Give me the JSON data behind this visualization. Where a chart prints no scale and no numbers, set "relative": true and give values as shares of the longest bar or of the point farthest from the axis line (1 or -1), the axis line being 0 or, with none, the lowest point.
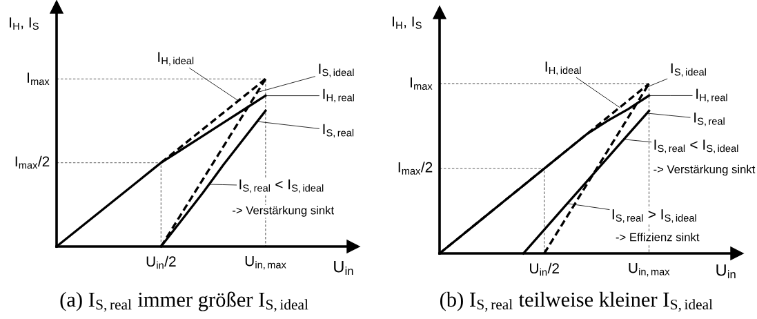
{
  "chart_data": [
    {
      "type": "line",
      "relative": true,
      "legend": "right",
      "title": "(a) I$_{S,real}$ immer größer I$_{S,ideal}$",
      "xlabel": "U$_{in}$",
      "ylabel": "I$_{H}$, I$_{S}$",
      "categories": [
        null,
        null,
        null,
        null,
        null,
        "U$_{in}$/2",
        null,
        null,
        null,
        null,
        "U$_{in,max}$"
      ],
      "ref_lines": [
        {
          "axis": "y",
          "value": 0.5,
          "label": "I$_{max}$/2",
          "color": "#808080",
          "line_style": "dotted"
        },
        {
          "axis": "y",
          "value": 1,
          "label": "I$_{max}$",
          "color": "#808080",
          "line_style": "dotted"
        }
      ],
      "series": [
        {
          "name": "I$_{H,ideal}$",
          "color": "#000000",
          "line_style": "dashed",
          "values": [
            null,
            null,
            null,
            null,
            null,
            0.5,
            0.6,
            0.7,
            0.8,
            0.9,
            1
          ]
        },
        {
          "name": "I$_{S,ideal}$",
          "color": "#000000",
          "line_style": "dashed",
          "values": [
            null,
            null,
            null,
            null,
            null,
            0,
            0.2,
            0.4,
            0.6,
            0.8,
            1
          ]
        },
        {
          "name": "I$_{H,real}$",
          "color": "#000000",
          "line_style": "solid",
          "values": [
            0,
            0.1,
            0.2,
            0.3,
            0.4,
            0.5,
            0.58,
            0.66,
            0.74,
            0.82,
            0.9
          ]
        },
        {
          "name": "I$_{S,real}$",
          "color": "#000000",
          "line_style": "solid",
          "values": [
            null,
            null,
            null,
            null,
            null,
            0,
            0.16,
            0.32,
            0.49,
            0.65,
            0.81
          ]
        }
      ],
      "annotations": [
        "I$_{S,real}$ < I$_{S,ideal}$",
        "-> Verstärkung sinkt"
      ]
    },
    {
      "type": "line",
      "relative": true,
      "legend": "right",
      "title": "(b) I$_{S,real}$ teilweise kleiner I$_{S,ideal}$",
      "xlabel": "U$_{in}$",
      "ylabel": "I$_{H}$, I$_{S}$",
      "categories": [
        null,
        null,
        null,
        null,
        null,
        "U$_{in}$/2",
        null,
        null,
        null,
        null,
        "U$_{in,max}$"
      ],
      "ref_lines": [
        {
          "axis": "y",
          "value": 0.5,
          "label": "I$_{max}$/2",
          "color": "#808080",
          "line_style": "dotted"
        },
        {
          "axis": "y",
          "value": 1,
          "label": "I$_{max}$",
          "color": "#808080",
          "line_style": "dotted"
        }
      ],
      "series": [
        {
          "name": "I$_{H,ideal}$",
          "color": "#000000",
          "line_style": "dashed",
          "values": [
            0,
            0.1,
            0.2,
            0.3,
            0.4,
            0.5,
            0.6,
            0.7,
            0.8,
            0.9,
            1
          ]
        },
        {
          "name": "I$_{S,ideal}$",
          "color": "#000000",
          "line_style": "dashed",
          "values": [
            null,
            null,
            null,
            null,
            null,
            0,
            0.2,
            0.4,
            0.6,
            0.8,
            1
          ]
        },
        {
          "name": "I$_{H,real}$",
          "color": "#000000",
          "line_style": "solid",
          "values": [
            0,
            0.1,
            0.2,
            0.3,
            0.4,
            0.5,
            0.6,
            0.7,
            0.78,
            0.85,
            0.93
          ]
        },
        {
          "name": "I$_{S,real}$",
          "color": "#000000",
          "line_style": "solid",
          "values": [
            null,
            null,
            null,
            null,
            0,
            0.14,
            0.28,
            0.42,
            0.56,
            0.7,
            0.84
          ]
        }
      ],
      "annotations": [
        "I$_{S,real}$ < I$_{S,ideal}$",
        "-> Verstärkung sinkt",
        "I$_{S,real}$ > I$_{S,ideal}$",
        "-> Effizienz sinkt"
      ]
    }
  ]
}
